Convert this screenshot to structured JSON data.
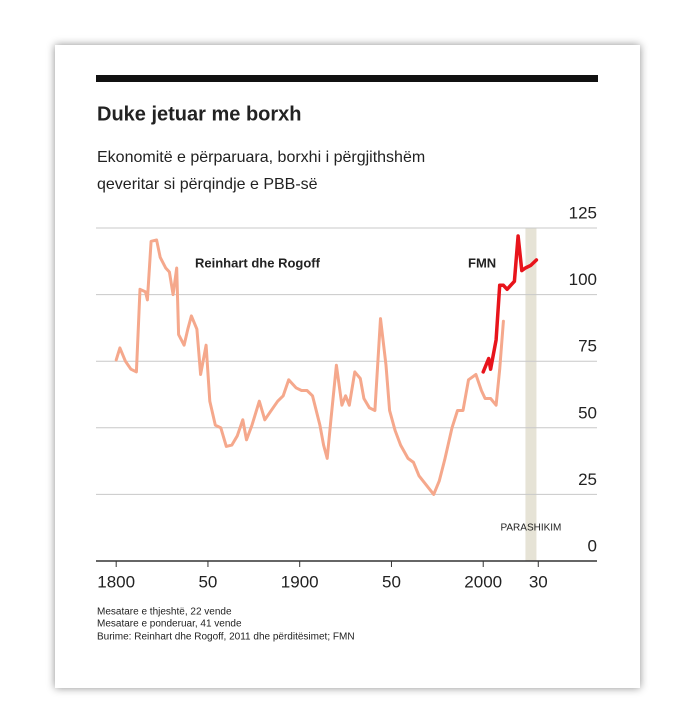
{
  "chart_data": {
    "type": "line",
    "title": "Duke jetuar me borxh",
    "subtitle_lines": [
      "Ekonomitë e përparuara, borxhi i përgjithshëm",
      "qeveritar si përqindje e PBB-së"
    ],
    "xlim": [
      1789,
      2062
    ],
    "ylim": [
      0,
      125
    ],
    "yticks": [
      0,
      25,
      50,
      75,
      100,
      125
    ],
    "xticks": [
      1800,
      {
        "value": 1850,
        "label": "50"
      },
      1900,
      {
        "value": 1950,
        "label": "50"
      },
      2000,
      {
        "value": 2030,
        "label": "30"
      }
    ],
    "grid": true,
    "forecast_span": [
      2023,
      2029
    ],
    "forecast_label": "PARASHIKIM",
    "series": [
      {
        "name": "Reinhart dhe Rogoff",
        "color": "#f5a88c",
        "x": [
          1800,
          1802,
          1805,
          1808,
          1811,
          1813,
          1816,
          1817,
          1819,
          1822,
          1824,
          1827,
          1829,
          1831,
          1833,
          1834,
          1837,
          1839,
          1841,
          1844,
          1846,
          1849,
          1851,
          1854,
          1857,
          1860,
          1863,
          1866,
          1869,
          1871,
          1874,
          1878,
          1881,
          1884,
          1888,
          1891,
          1894,
          1898,
          1901,
          1904,
          1907,
          1911,
          1913,
          1915,
          1917,
          1920,
          1923,
          1925,
          1927,
          1930,
          1933,
          1935,
          1938,
          1941,
          1944,
          1947,
          1949,
          1952,
          1955,
          1959,
          1962,
          1965,
          1969,
          1973,
          1976,
          1979,
          1983,
          1986,
          1989,
          1992,
          1996,
          1999,
          2001,
          2004,
          2007,
          2009,
          2011
        ],
        "values": [
          75.5,
          80,
          75,
          72,
          71,
          102,
          101,
          98,
          120,
          120.5,
          114,
          110,
          108.5,
          100,
          110,
          85,
          81,
          87,
          92,
          87,
          70,
          81,
          60,
          51,
          50,
          43,
          43.5,
          47,
          53,
          45.5,
          51,
          60,
          53,
          56,
          60,
          62,
          68,
          65,
          64,
          64,
          62,
          51,
          43.5,
          38.5,
          53,
          73.5,
          58.5,
          62,
          58.5,
          71,
          68.5,
          61,
          57.5,
          56.5,
          91,
          73.5,
          56.5,
          49,
          43.5,
          38.5,
          37,
          32,
          28.5,
          25,
          30,
          38,
          50,
          56.5,
          56.5,
          68,
          70,
          64,
          61,
          61,
          58.5,
          72,
          90
        ]
      },
      {
        "name": "FMN",
        "color": "#e8141b",
        "x": [
          2000,
          2003,
          2004,
          2007,
          2009,
          2011,
          2013,
          2015,
          2017,
          2019,
          2021,
          2023,
          2026,
          2029
        ],
        "values": [
          71,
          76,
          72,
          83,
          103.5,
          103.5,
          102,
          103.5,
          105,
          122,
          109,
          110,
          111,
          113
        ]
      }
    ],
    "notes": [
      "Mesatare e thjeshtë, 22 vende",
      "Mesatare e ponderuar, 41 vende",
      "Burime: Reinhart dhe Rogoff, 2011 dhe përditësimet; FMN"
    ]
  }
}
